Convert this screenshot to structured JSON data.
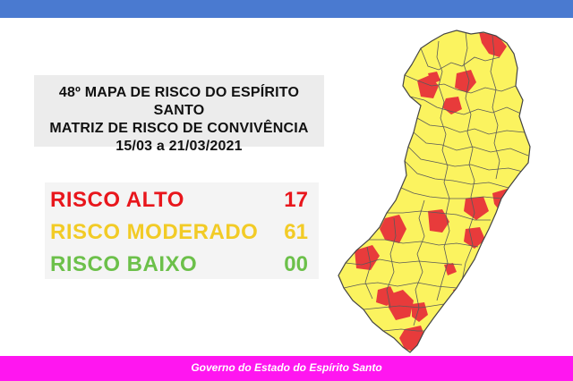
{
  "title": {
    "line1": "48º MAPA DE RISCO DO ESPÍRITO SANTO",
    "line2": "MATRIZ DE RISCO DE CONVIVÊNCIA",
    "line3": "15/03 a 21/03/2021"
  },
  "risks": [
    {
      "label": "RISCO ALTO",
      "count": "17",
      "color": "#e8161c"
    },
    {
      "label": "RISCO MODERADO",
      "count": "61",
      "color": "#f2cb26"
    },
    {
      "label": "RISCO BAIXO",
      "count": "00",
      "color": "#6cc04a"
    }
  ],
  "map": {
    "region": "Espírito Santo",
    "moderate_color": "#fbf35f",
    "high_color": "#e83b3b",
    "border_color": "#5a5a5a"
  },
  "footer": {
    "text": "Governo do Estado do Espírito Santo",
    "bar_color": "#ff16f0"
  },
  "top_bar_color": "#4a7ad0"
}
